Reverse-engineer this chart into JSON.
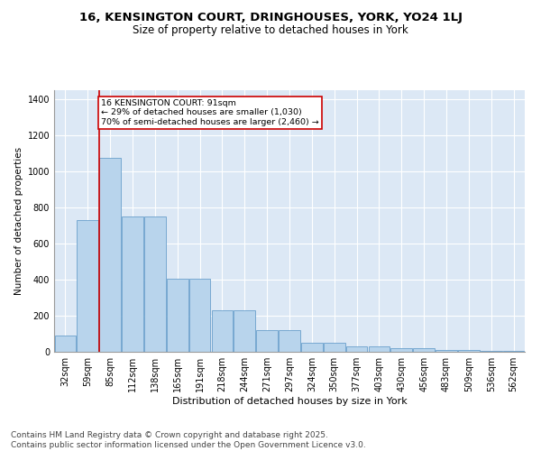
{
  "title": "16, KENSINGTON COURT, DRINGHOUSES, YORK, YO24 1LJ",
  "subtitle": "Size of property relative to detached houses in York",
  "xlabel": "Distribution of detached houses by size in York",
  "ylabel": "Number of detached properties",
  "categories": [
    "32sqm",
    "59sqm",
    "85sqm",
    "112sqm",
    "138sqm",
    "165sqm",
    "191sqm",
    "218sqm",
    "244sqm",
    "271sqm",
    "297sqm",
    "324sqm",
    "350sqm",
    "377sqm",
    "403sqm",
    "430sqm",
    "456sqm",
    "483sqm",
    "509sqm",
    "536sqm",
    "562sqm"
  ],
  "values": [
    90,
    730,
    1075,
    750,
    750,
    405,
    405,
    230,
    230,
    120,
    120,
    50,
    50,
    28,
    28,
    20,
    20,
    10,
    10,
    5,
    5
  ],
  "bar_color": "#b8d4ec",
  "bar_edge_color": "#6aa0cc",
  "vline_x": 1.5,
  "vline_color": "#cc0000",
  "annotation_text": "16 KENSINGTON COURT: 91sqm\n← 29% of detached houses are smaller (1,030)\n70% of semi-detached houses are larger (2,460) →",
  "annotation_box_color": "#cc0000",
  "ylim": [
    0,
    1450
  ],
  "yticks": [
    0,
    200,
    400,
    600,
    800,
    1000,
    1200,
    1400
  ],
  "bg_color": "#dce8f5",
  "footer": "Contains HM Land Registry data © Crown copyright and database right 2025.\nContains public sector information licensed under the Open Government Licence v3.0.",
  "title_fontsize": 9.5,
  "subtitle_fontsize": 8.5,
  "xlabel_fontsize": 8,
  "ylabel_fontsize": 7.5,
  "tick_fontsize": 7,
  "footer_fontsize": 6.5
}
